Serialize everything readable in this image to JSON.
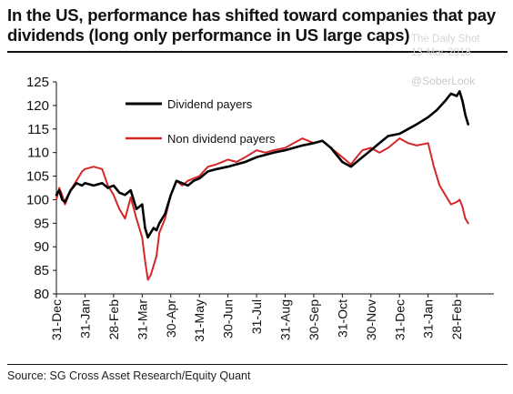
{
  "title": "In the US, performance has shifted toward companies that pay dividends (long only performance in US large caps)",
  "watermark": {
    "brand": "The Daily Shot",
    "date": "13-Mar-2018",
    "handle": "@SoberLook"
  },
  "source": "Source: SG Cross Asset Research/Equity Quant",
  "colors": {
    "dividend": "#000000",
    "non_dividend": "#d62728"
  },
  "chart_data": {
    "type": "line",
    "title": "",
    "xlabel": "",
    "ylabel": "",
    "ylim": [
      80,
      125
    ],
    "yticks": [
      80,
      85,
      90,
      95,
      100,
      105,
      110,
      115,
      120,
      125
    ],
    "x_tick_labels": [
      "31-Dec",
      "31-Jan",
      "28-Feb",
      "31-Mar",
      "30-Apr",
      "31-May",
      "30-Jun",
      "31-Jul",
      "31-Aug",
      "30-Sep",
      "31-Oct",
      "30-Nov",
      "31-Dec",
      "31-Jan",
      "28-Feb"
    ],
    "x_tick_positions": [
      0,
      1,
      2,
      3,
      4,
      5,
      6,
      7,
      8,
      9,
      10,
      11,
      12,
      13,
      14
    ],
    "xlim": [
      0,
      15.3
    ],
    "legend": {
      "position": "top-left inside plot"
    },
    "grid": false,
    "series": [
      {
        "name": "Dividend payers",
        "color": "#000000",
        "x": [
          0.0,
          0.1,
          0.2,
          0.3,
          0.5,
          0.7,
          0.9,
          1.0,
          1.3,
          1.6,
          1.8,
          2.0,
          2.2,
          2.4,
          2.6,
          2.8,
          3.0,
          3.1,
          3.2,
          3.3,
          3.4,
          3.5,
          3.6,
          3.8,
          4.0,
          4.2,
          4.4,
          4.6,
          4.8,
          5.0,
          5.3,
          5.6,
          6.0,
          6.3,
          6.6,
          7.0,
          7.3,
          7.6,
          8.0,
          8.3,
          8.6,
          9.0,
          9.3,
          9.6,
          10.0,
          10.3,
          10.5,
          10.7,
          11.0,
          11.3,
          11.6,
          12.0,
          12.3,
          12.6,
          13.0,
          13.3,
          13.6,
          13.8,
          14.0,
          14.1,
          14.2,
          14.3,
          14.4
        ],
        "y": [
          101,
          102,
          100,
          99.5,
          102,
          103.5,
          103,
          103.5,
          103,
          103.5,
          102.5,
          103,
          101.5,
          101,
          102,
          98,
          99,
          94,
          92,
          93,
          94,
          93.5,
          95,
          97,
          101,
          104,
          103.5,
          103,
          104,
          104.5,
          106,
          106.5,
          107,
          107.5,
          108,
          109,
          109.5,
          110,
          110.5,
          111,
          111.5,
          112,
          112.5,
          111,
          108,
          107,
          108,
          109,
          110.5,
          112,
          113.5,
          114,
          115,
          116,
          117.5,
          119,
          121,
          122.5,
          122,
          123,
          121,
          118,
          116
        ]
      },
      {
        "name": "Non dividend payers",
        "color": "#d62728",
        "x": [
          0.0,
          0.1,
          0.2,
          0.3,
          0.5,
          0.7,
          0.9,
          1.0,
          1.3,
          1.6,
          1.8,
          2.0,
          2.2,
          2.4,
          2.6,
          2.8,
          3.0,
          3.1,
          3.2,
          3.3,
          3.4,
          3.5,
          3.6,
          3.8,
          4.0,
          4.2,
          4.4,
          4.6,
          4.8,
          5.0,
          5.3,
          5.6,
          6.0,
          6.3,
          6.6,
          7.0,
          7.3,
          7.6,
          8.0,
          8.3,
          8.6,
          9.0,
          9.3,
          9.6,
          10.0,
          10.3,
          10.5,
          10.7,
          11.0,
          11.3,
          11.6,
          12.0,
          12.3,
          12.6,
          13.0,
          13.2,
          13.4,
          13.6,
          13.8,
          14.0,
          14.1,
          14.2,
          14.3,
          14.4
        ],
        "y": [
          100,
          102.5,
          101,
          99,
          102,
          104,
          106,
          106.5,
          107,
          106.5,
          103,
          101,
          98,
          96,
          100.5,
          96,
          92,
          87,
          83,
          84,
          86,
          88,
          93,
          96,
          101,
          104,
          103,
          104,
          104.5,
          105,
          107,
          107.5,
          108.5,
          108,
          109,
          110.5,
          110,
          110.5,
          111,
          112,
          113,
          112,
          112.5,
          111,
          109,
          107.5,
          109,
          110.5,
          111,
          110,
          111,
          113,
          112,
          111.5,
          112,
          107,
          103,
          101,
          99,
          99.5,
          100,
          98.5,
          96,
          95
        ]
      }
    ]
  }
}
